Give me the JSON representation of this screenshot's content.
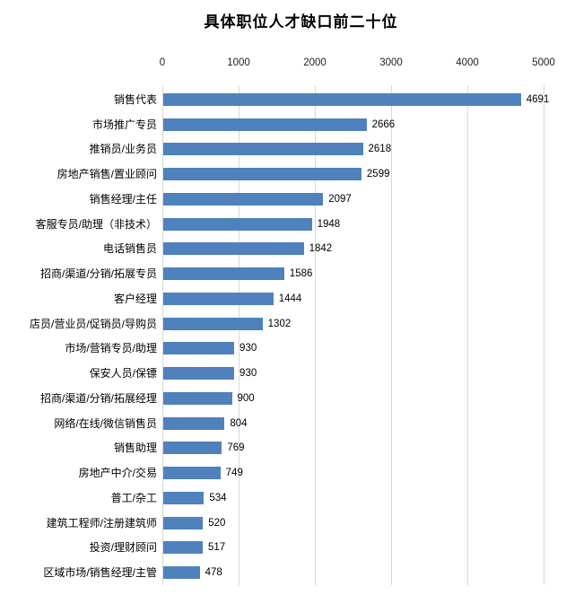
{
  "title": "具体职位人才缺口前二十位",
  "colors": {
    "bar": "#4F81BD",
    "gridline": "#d9d9d9",
    "tick_mark": "#747474",
    "text": "#000000",
    "background": "#ffffff"
  },
  "chart_data": {
    "type": "bar",
    "orientation": "horizontal",
    "title": "具体职位人才缺口前二十位",
    "categories": [
      "销售代表",
      "市场推广专员",
      "推销员/业务员",
      "房地产销售/置业顾问",
      "销售经理/主任",
      "客服专员/助理（非技术）",
      "电话销售员",
      "招商/渠道/分销/拓展专员",
      "客户经理",
      "店员/营业员/促销员/导购员",
      "市场/营销专员/助理",
      "保安人员/保镖",
      "招商/渠道/分销/拓展经理",
      "网络/在线/微信销售员",
      "销售助理",
      "房地产中介/交易",
      "普工/杂工",
      "建筑工程师/注册建筑师",
      "投资/理财顾问",
      "区域市场/销售经理/主管"
    ],
    "values": [
      4691,
      2666,
      2618,
      2599,
      2097,
      1948,
      1842,
      1586,
      1444,
      1302,
      930,
      930,
      900,
      804,
      769,
      749,
      534,
      520,
      517,
      478
    ],
    "xlim": [
      0,
      5000
    ],
    "x_ticks": [
      0,
      1000,
      2000,
      3000,
      4000,
      5000
    ],
    "grid": true,
    "data_labels": true,
    "legend": "none",
    "xlabel": "",
    "ylabel": ""
  }
}
